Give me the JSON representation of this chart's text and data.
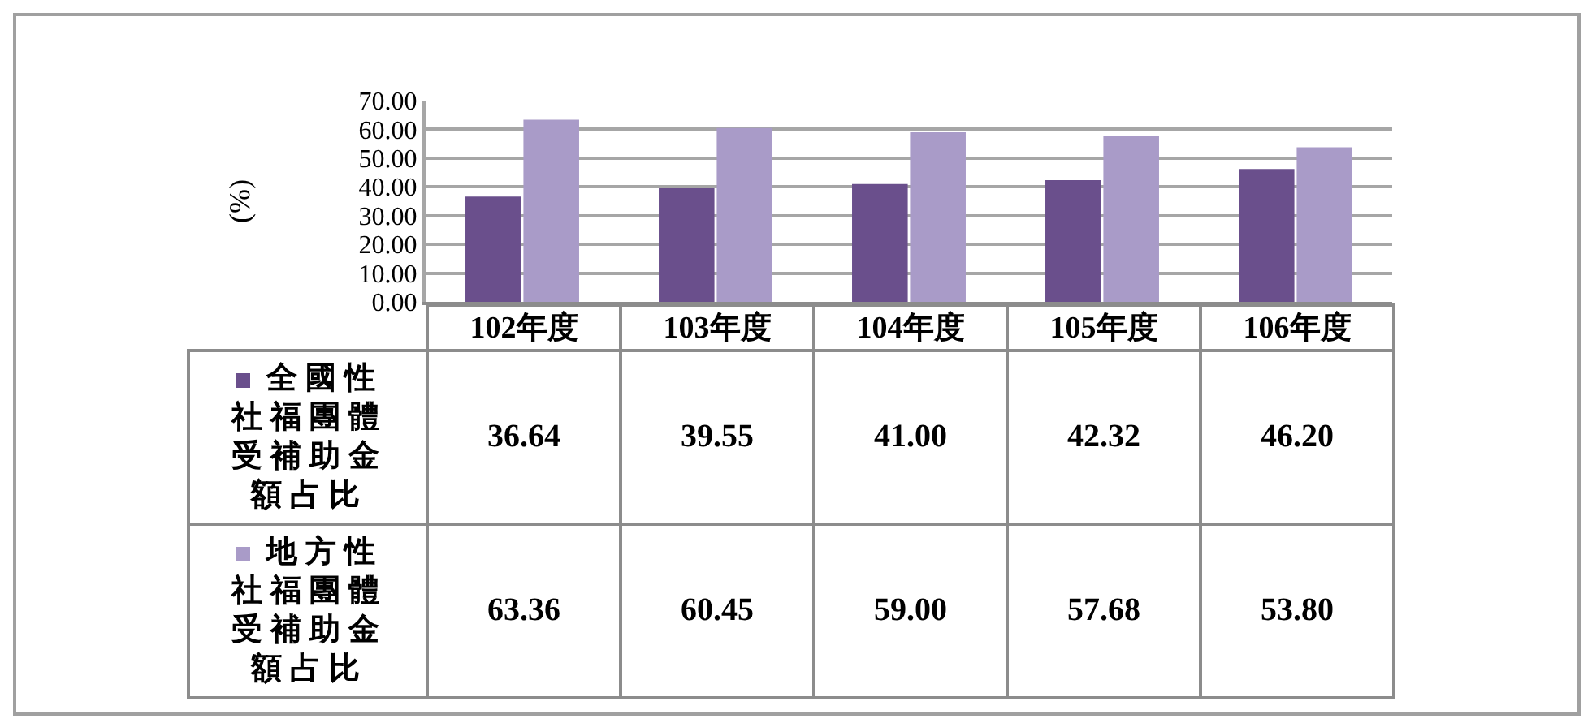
{
  "chart_data": {
    "type": "bar",
    "categories": [
      "102年度",
      "103年度",
      "104年度",
      "105年度",
      "106年度"
    ],
    "ylabel": "(%)",
    "ylim": [
      0,
      70
    ],
    "yticks": [
      {
        "value": 0,
        "label": "0.00"
      },
      {
        "value": 10,
        "label": "10.00"
      },
      {
        "value": 20,
        "label": "20.00"
      },
      {
        "value": 30,
        "label": "30.00"
      },
      {
        "value": 40,
        "label": "40.00"
      },
      {
        "value": 50,
        "label": "50.00"
      },
      {
        "value": 60,
        "label": "60.00"
      },
      {
        "value": 70,
        "label": "70.00"
      }
    ],
    "grid": "y",
    "legend": "bottom",
    "series": [
      {
        "name": "全國性社福團體受補助金額占比",
        "color": "#6a4f8c",
        "values": [
          36.64,
          39.55,
          41,
          42.32,
          46.2
        ],
        "value_labels": [
          "36.64",
          "39.55",
          "41.00",
          "42.32",
          "46.20"
        ]
      },
      {
        "name": "地方性社福團體受補助金額占比",
        "color": "#a99bc8",
        "values": [
          63.36,
          60.45,
          59,
          57.68,
          53.8
        ],
        "value_labels": [
          "63.36",
          "60.45",
          "59.00",
          "57.68",
          "53.80"
        ]
      }
    ]
  }
}
